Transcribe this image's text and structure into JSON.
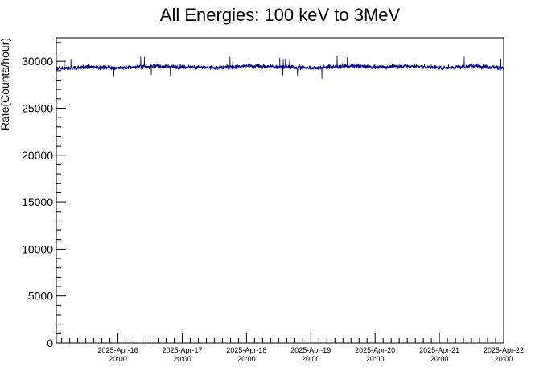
{
  "chart_data": {
    "type": "line",
    "title": "All Energies:  100 keV to 3MeV",
    "xlabel": "",
    "ylabel": "Rate(Counts/hour)",
    "ylim": [
      0,
      32500
    ],
    "xlim": [
      "2025-04-15T21:00",
      "2025-04-22T20:00"
    ],
    "y_ticks": [
      0,
      5000,
      10000,
      15000,
      20000,
      25000,
      30000
    ],
    "x_ticks": [
      {
        "date": "2025-Apr-16",
        "time": "20:00"
      },
      {
        "date": "2025-Apr-17",
        "time": "20:00"
      },
      {
        "date": "2025-Apr-18",
        "time": "20:00"
      },
      {
        "date": "2025-Apr-19",
        "time": "20:00"
      },
      {
        "date": "2025-Apr-20",
        "time": "20:00"
      },
      {
        "date": "2025-Apr-21",
        "time": "20:00"
      },
      {
        "date": "2025-Apr-22",
        "time": "20:00"
      }
    ],
    "grid": false,
    "line_color": "#000080",
    "series": [
      {
        "x": [
          "2025-04-15T21:00",
          "2025-04-16T09:00",
          "2025-04-16T21:00",
          "2025-04-17T09:00",
          "2025-04-17T21:00",
          "2025-04-18T09:00",
          "2025-04-18T21:00",
          "2025-04-19T09:00",
          "2025-04-19T21:00",
          "2025-04-20T09:00",
          "2025-04-20T21:00",
          "2025-04-21T09:00",
          "2025-04-21T21:00",
          "2025-04-22T09:00",
          "2025-04-22T20:00"
        ],
        "values": [
          29200,
          29400,
          29300,
          29500,
          29400,
          29300,
          29500,
          29400,
          29300,
          29500,
          29400,
          29500,
          29300,
          29500,
          29300
        ],
        "noise_band": [
          27800,
          30800
        ]
      }
    ]
  }
}
